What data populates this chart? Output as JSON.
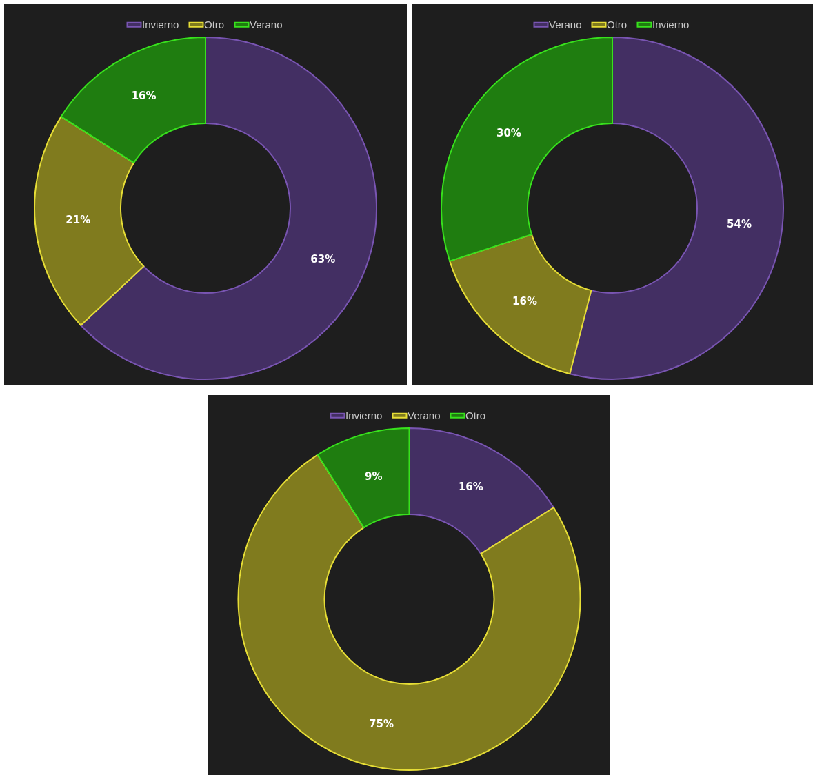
{
  "chart_data": [
    {
      "type": "donut",
      "categories": [
        "Invierno",
        "Otro",
        "Verano"
      ],
      "values": [
        63,
        21,
        16
      ],
      "colors": [
        "#432f63",
        "#807b1e",
        "#1f7d10"
      ],
      "value_labels": [
        "63%",
        "21%",
        "16%"
      ],
      "legend": "top"
    },
    {
      "type": "donut",
      "categories": [
        "Verano",
        "Otro",
        "Invierno"
      ],
      "values": [
        54,
        16,
        30
      ],
      "colors": [
        "#432f63",
        "#807b1e",
        "#1f7d10"
      ],
      "value_labels": [
        "54%",
        "16%",
        "30%"
      ],
      "legend": "top"
    },
    {
      "type": "donut",
      "categories": [
        "Invierno",
        "Verano",
        "Otro"
      ],
      "values": [
        16,
        75,
        9
      ],
      "colors": [
        "#432f63",
        "#807b1e",
        "#1f7d10"
      ],
      "value_labels": [
        "16%",
        "75%",
        "9%"
      ],
      "legend": "top"
    }
  ]
}
